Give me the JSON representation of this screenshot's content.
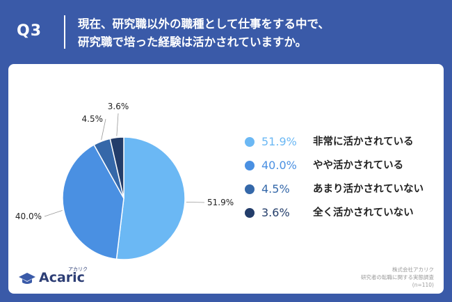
{
  "header": {
    "q_label": "Q3",
    "question_line1": "現在、研究職以外の職種として仕事をする中で、",
    "question_line2": "研究職で培った経験は活かされていますか。"
  },
  "chart_data": {
    "type": "pie",
    "categories": [
      "非常に活かされている",
      "やや活かされている",
      "あまり活かされていない",
      "全く活かされていない"
    ],
    "values": [
      51.9,
      40.0,
      4.5,
      3.6
    ],
    "value_labels": [
      "51.9%",
      "40.0%",
      "4.5%",
      "3.6%"
    ],
    "colors": [
      "#6bb8f4",
      "#4a90e2",
      "#3568a9",
      "#233d6a"
    ],
    "legend_placement": "right"
  },
  "legend": [
    {
      "pct": "51.9%",
      "label": "非常に活かされている"
    },
    {
      "pct": "40.0%",
      "label": "やや活かされている"
    },
    {
      "pct": "4.5%",
      "label": "あまり活かされていない"
    },
    {
      "pct": "3.6%",
      "label": "全く活かされていない"
    }
  ],
  "logo": {
    "text": "Acaric",
    "kana": "アカリク"
  },
  "source": {
    "line1": "株式会社アカリク",
    "line2": "研究者の転職に関する実態調査",
    "line3": "(n=110)"
  }
}
